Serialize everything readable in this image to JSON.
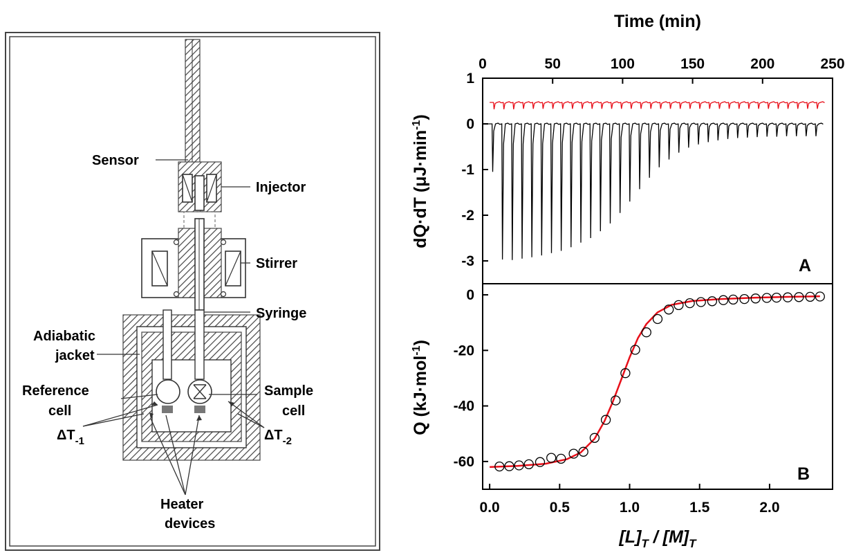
{
  "diagram": {
    "labels": {
      "sensor": "Sensor",
      "injector": "Injector",
      "stirrer": "Stirrer",
      "syringe": "Syringe",
      "adiabatic_1": "Adiabatic",
      "adiabatic_2": "jacket",
      "reference_1": "Reference",
      "reference_2": "cell",
      "sample_1": "Sample",
      "sample_2": "cell",
      "dt1_base": "ΔT",
      "dt1_sub": "-1",
      "dt2_base": "ΔT",
      "dt2_sub": "-2",
      "heater_1": "Heater",
      "heater_2": "devices"
    }
  },
  "colors": {
    "red_series": "#e8101a",
    "black_series": "#000000",
    "fit_line": "#e8101a"
  },
  "chart_data": [
    {
      "type": "line",
      "panel_label": "A",
      "title": "",
      "xlabel": "Time (min)",
      "ylabel_main": "dQ·dT (μJ·min",
      "ylabel_sup": "-1",
      "ylabel_close": ")",
      "xlim": [
        0,
        250
      ],
      "ylim": [
        -3.5,
        1.0
      ],
      "x_ticks": [
        0,
        50,
        100,
        150,
        200,
        250
      ],
      "y_ticks": [
        -3,
        -2,
        -1,
        0,
        1
      ],
      "x_tick_labels": [
        "0",
        "50",
        "100",
        "150",
        "200",
        "250"
      ],
      "y_tick_labels": [
        "-3",
        "-2",
        "-1",
        "0",
        "1"
      ],
      "x_axis_position": "top",
      "grid": false,
      "series": [
        {
          "kind": "blank_titration",
          "color": "#e8101a",
          "baseline": 0.47,
          "injection_times": [
            8,
            15,
            22,
            29,
            36,
            43,
            50,
            57,
            64,
            71,
            78,
            85,
            92,
            99,
            106,
            113,
            120,
            127,
            134,
            141,
            148,
            155,
            162,
            169,
            176,
            183,
            190,
            197,
            204,
            211,
            218,
            225,
            232,
            239
          ],
          "peak_depth": [
            0.15,
            0.15,
            0.15,
            0.14,
            0.14,
            0.14,
            0.14,
            0.14,
            0.14,
            0.14,
            0.14,
            0.14,
            0.14,
            0.14,
            0.14,
            0.14,
            0.14,
            0.14,
            0.14,
            0.14,
            0.14,
            0.14,
            0.14,
            0.14,
            0.14,
            0.14,
            0.14,
            0.14,
            0.14,
            0.14,
            0.14,
            0.14,
            0.14,
            0.14
          ]
        },
        {
          "kind": "sample_titration",
          "color": "#000000",
          "baseline": 0.0,
          "injection_times": [
            7,
            14,
            21,
            28,
            35,
            42,
            49,
            56,
            63,
            70,
            77,
            84,
            91,
            98,
            105,
            112,
            119,
            126,
            133,
            140,
            147,
            154,
            161,
            168,
            175,
            182,
            189,
            196,
            203,
            210,
            217,
            224,
            231,
            238
          ],
          "peak_depth": [
            1.05,
            2.97,
            2.98,
            2.95,
            2.92,
            2.88,
            2.83,
            2.78,
            2.7,
            2.6,
            2.5,
            2.35,
            2.18,
            1.95,
            1.7,
            1.43,
            1.18,
            0.95,
            0.78,
            0.63,
            0.52,
            0.45,
            0.4,
            0.36,
            0.33,
            0.31,
            0.3,
            0.29,
            0.28,
            0.28,
            0.27,
            0.27,
            0.27,
            0.27
          ]
        }
      ]
    },
    {
      "type": "scatter",
      "panel_label": "B",
      "title": "",
      "xlabel_L": "[L]",
      "xlabel_L_sub": "T",
      "xlabel_sep": " / ",
      "xlabel_M": "[M]",
      "xlabel_M_sub": "T",
      "ylabel_main": "Q (kJ·mol",
      "ylabel_sup": "-1",
      "ylabel_close": ")",
      "xlim": [
        -0.05,
        2.45
      ],
      "ylim": [
        -70,
        4
      ],
      "x_ticks": [
        0.0,
        0.5,
        1.0,
        1.5,
        2.0
      ],
      "y_ticks": [
        -60,
        -40,
        -20,
        0
      ],
      "x_tick_labels": [
        "0.0",
        "0.5",
        "1.0",
        "1.5",
        "2.0"
      ],
      "y_tick_labels": [
        "-60",
        "-40",
        "-20",
        "0"
      ],
      "grid": false,
      "series": [
        {
          "kind": "points",
          "marker": "open-circle",
          "x": [
            0.07,
            0.14,
            0.21,
            0.28,
            0.36,
            0.44,
            0.51,
            0.6,
            0.67,
            0.75,
            0.83,
            0.9,
            0.97,
            1.04,
            1.12,
            1.2,
            1.28,
            1.35,
            1.43,
            1.51,
            1.59,
            1.67,
            1.74,
            1.82,
            1.9,
            1.98,
            2.05,
            2.13,
            2.21,
            2.29,
            2.36
          ],
          "y": [
            -61.8,
            -61.7,
            -61.4,
            -61.0,
            -60.2,
            -58.7,
            -59.0,
            -57.2,
            -56.5,
            -51.5,
            -45.0,
            -38.0,
            -28.2,
            -19.8,
            -13.5,
            -8.7,
            -5.3,
            -3.7,
            -3.0,
            -2.6,
            -2.3,
            -1.9,
            -1.7,
            -1.5,
            -1.3,
            -1.1,
            -1.0,
            -0.9,
            -0.8,
            -0.7,
            -0.6
          ]
        },
        {
          "kind": "fit",
          "color": "#e8101a",
          "x": [
            0.0,
            0.2,
            0.4,
            0.55,
            0.65,
            0.75,
            0.82,
            0.88,
            0.94,
            1.0,
            1.06,
            1.12,
            1.2,
            1.3,
            1.45,
            1.65,
            1.9,
            2.15,
            2.36
          ],
          "y": [
            -62.0,
            -61.6,
            -60.8,
            -59.2,
            -56.8,
            -51.8,
            -45.5,
            -38.5,
            -30.5,
            -22.5,
            -15.5,
            -10.5,
            -6.3,
            -3.6,
            -2.2,
            -1.5,
            -1.0,
            -0.7,
            -0.5
          ]
        }
      ]
    }
  ]
}
